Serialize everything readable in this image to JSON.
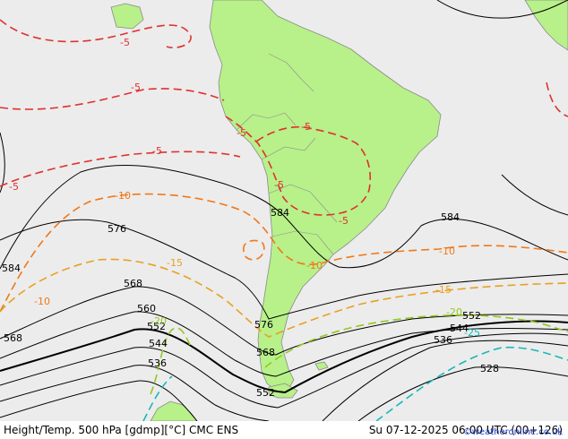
{
  "footer": {
    "product": "Height/Temp. 500 hPa [gdmp][°C] CMC ENS",
    "valid_time": "Su 07-12-2025 06:00 UTC (00+126)"
  },
  "credit": "©weatheronline.co.uk",
  "colors": {
    "ocean": "#ececec",
    "land": "#b8f08a",
    "height_contours": "#000000",
    "temp_minus5": "#e03030",
    "temp_minus10": "#f07818",
    "temp_minus15": "#e8a020",
    "temp_minus20": "#90c820",
    "temp_minus25": "#18b8b8"
  },
  "height_labels": {
    "h584_chile": "584",
    "h584_atlantic": "584",
    "h584_pacific": "584",
    "h576_pacific": "576",
    "h576_patagonia": "576",
    "h568_pacific": "568",
    "h568_patagonia": "568",
    "h568_left": "568",
    "h560": "560",
    "h552_pacific": "552",
    "h552_south": "552",
    "h552_atlantic": "552",
    "h544_pacific": "544",
    "h544_atlantic": "544",
    "h536_pacific": "536",
    "h536_atlantic": "536",
    "h528": "528"
  },
  "temp_labels": {
    "t5_north": "-5",
    "t5_a": "-5",
    "t5_b": "-5",
    "t5_left": "-5",
    "t5_peru": "-5",
    "t5_brazil": "-5",
    "t5_chile": "-5",
    "t5_se": "-5",
    "t10_pacific": "-10",
    "t10_left": "-10",
    "t10_argentina": "-10",
    "t10_atlantic": "-10",
    "t15_pacific": "-15",
    "t15_atlantic": "-15",
    "t20_pacific": "-20",
    "t20_atlantic": "-20",
    "t25": "-25"
  }
}
